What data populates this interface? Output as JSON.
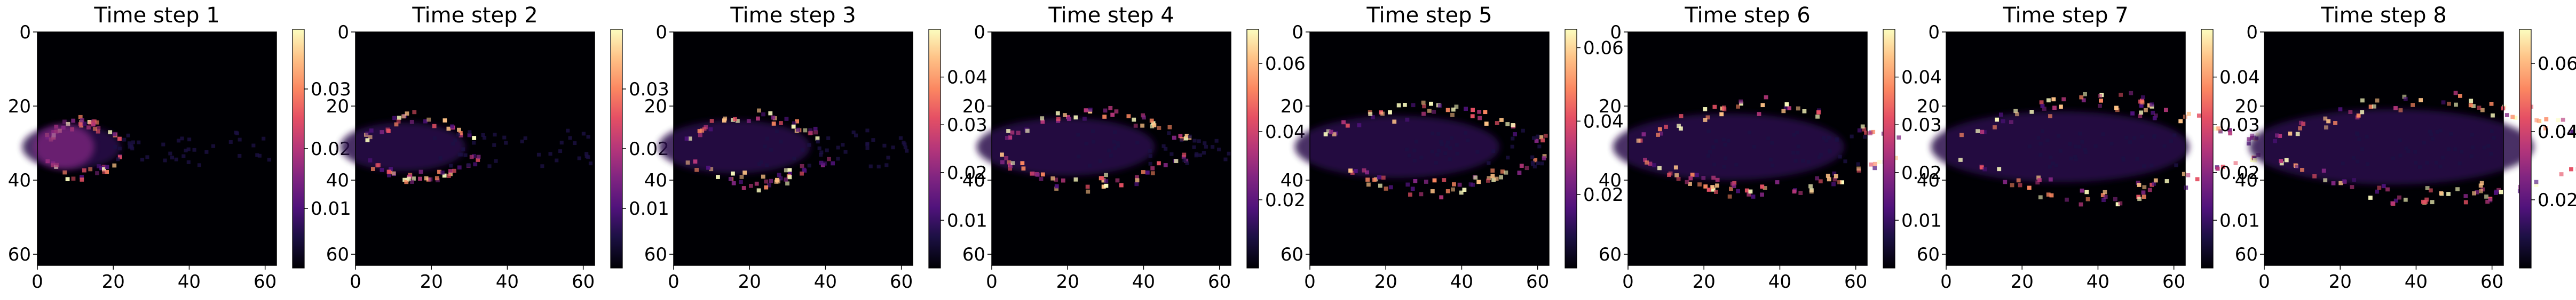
{
  "chart_data": [
    {
      "type": "heatmap",
      "title": "Time step 1",
      "xlim": [
        0,
        63
      ],
      "ylim": [
        63,
        0
      ],
      "xticks": [
        "0",
        "20",
        "40",
        "60"
      ],
      "yticks": [
        "0",
        "20",
        "40",
        "60"
      ],
      "cmap": "magma",
      "colorbar": {
        "range": [
          0,
          0.04
        ],
        "ticks": [
          "0.01",
          "0.02",
          "0.03"
        ]
      }
    },
    {
      "type": "heatmap",
      "title": "Time step 2",
      "xlim": [
        0,
        63
      ],
      "ylim": [
        63,
        0
      ],
      "xticks": [
        "0",
        "20",
        "40",
        "60"
      ],
      "yticks": [
        "0",
        "20",
        "40",
        "60"
      ],
      "cmap": "magma",
      "colorbar": {
        "range": [
          0,
          0.04
        ],
        "ticks": [
          "0.01",
          "0.02",
          "0.03"
        ]
      }
    },
    {
      "type": "heatmap",
      "title": "Time step 3",
      "xlim": [
        0,
        63
      ],
      "ylim": [
        63,
        0
      ],
      "xticks": [
        "0",
        "20",
        "40",
        "60"
      ],
      "yticks": [
        "0",
        "20",
        "40",
        "60"
      ],
      "cmap": "magma",
      "colorbar": {
        "range": [
          0,
          0.05
        ],
        "ticks": [
          "0.01",
          "0.02",
          "0.03",
          "0.04"
        ]
      }
    },
    {
      "type": "heatmap",
      "title": "Time step 4",
      "xlim": [
        0,
        63
      ],
      "ylim": [
        63,
        0
      ],
      "xticks": [
        "0",
        "20",
        "40",
        "60"
      ],
      "yticks": [
        "0",
        "20",
        "40",
        "60"
      ],
      "cmap": "magma",
      "colorbar": {
        "range": [
          0,
          0.07
        ],
        "ticks": [
          "0.02",
          "0.04",
          "0.06"
        ]
      }
    },
    {
      "type": "heatmap",
      "title": "Time step 5",
      "xlim": [
        0,
        63
      ],
      "ylim": [
        63,
        0
      ],
      "xticks": [
        "0",
        "20",
        "40",
        "60"
      ],
      "yticks": [
        "0",
        "20",
        "40",
        "60"
      ],
      "cmap": "magma",
      "colorbar": {
        "range": [
          0,
          0.065
        ],
        "ticks": [
          "0.02",
          "0.04",
          "0.06"
        ]
      }
    },
    {
      "type": "heatmap",
      "title": "Time step 6",
      "xlim": [
        0,
        63
      ],
      "ylim": [
        63,
        0
      ],
      "xticks": [
        "0",
        "20",
        "40",
        "60"
      ],
      "yticks": [
        "0",
        "20",
        "40",
        "60"
      ],
      "cmap": "magma",
      "colorbar": {
        "range": [
          0,
          0.05
        ],
        "ticks": [
          "0.01",
          "0.02",
          "0.03",
          "0.04"
        ]
      }
    },
    {
      "type": "heatmap",
      "title": "Time step 7",
      "xlim": [
        0,
        63
      ],
      "ylim": [
        63,
        0
      ],
      "xticks": [
        "0",
        "20",
        "40",
        "60"
      ],
      "yticks": [
        "0",
        "20",
        "40",
        "60"
      ],
      "cmap": "magma",
      "colorbar": {
        "range": [
          0,
          0.05
        ],
        "ticks": [
          "0.01",
          "0.02",
          "0.03",
          "0.04"
        ]
      }
    },
    {
      "type": "heatmap",
      "title": "Time step 8",
      "xlim": [
        0,
        63
      ],
      "ylim": [
        63,
        0
      ],
      "xticks": [
        "0",
        "20",
        "40",
        "60"
      ],
      "yticks": [
        "0",
        "20",
        "40",
        "60"
      ],
      "cmap": "magma",
      "colorbar": {
        "range": [
          0,
          0.07
        ],
        "ticks": [
          "0.02",
          "0.04",
          "0.06"
        ]
      }
    }
  ]
}
